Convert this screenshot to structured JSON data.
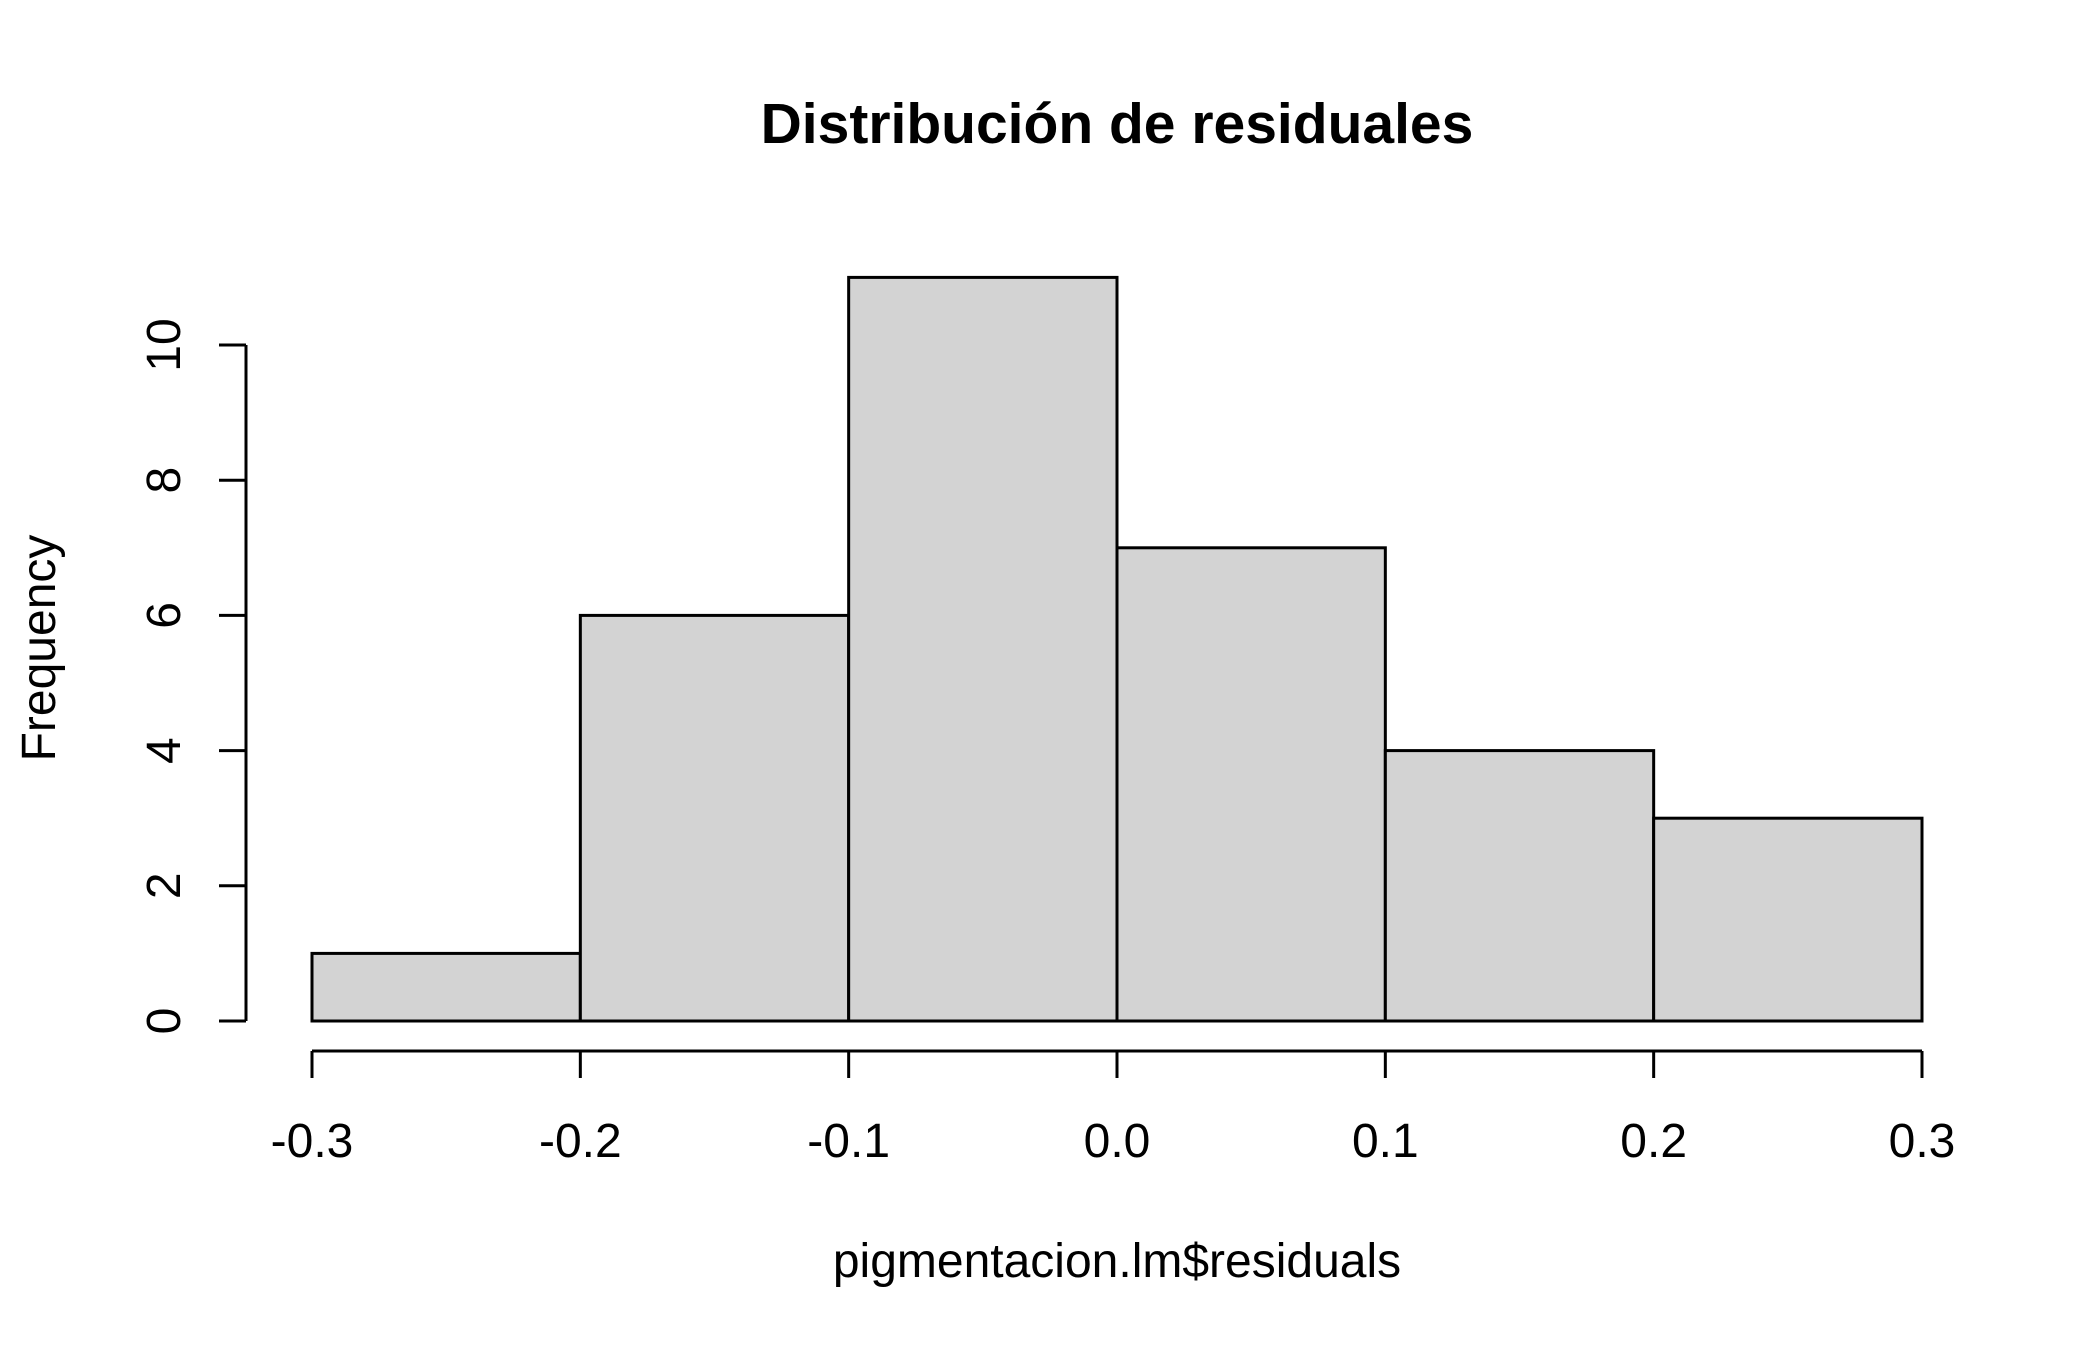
{
  "chart_data": {
    "type": "bar",
    "title": "Distribución de residuales",
    "xlabel": "pigmentacion.lm$residuals",
    "ylabel": "Frequency",
    "bins": [
      {
        "start": -0.3,
        "end": -0.2,
        "count": 1
      },
      {
        "start": -0.2,
        "end": -0.1,
        "count": 6
      },
      {
        "start": -0.1,
        "end": 0.0,
        "count": 11
      },
      {
        "start": 0.0,
        "end": 0.1,
        "count": 7
      },
      {
        "start": 0.1,
        "end": 0.2,
        "count": 4
      },
      {
        "start": 0.2,
        "end": 0.3,
        "count": 3
      }
    ],
    "xlim": [
      -0.3,
      0.3
    ],
    "ylim": [
      0,
      11
    ],
    "x_ticks": [
      -0.3,
      -0.2,
      -0.1,
      0.0,
      0.1,
      0.2,
      0.3
    ],
    "x_tick_labels": [
      "-0.3",
      "-0.2",
      "-0.1",
      "0.0",
      "0.1",
      "0.2",
      "0.3"
    ],
    "y_ticks": [
      0,
      2,
      4,
      6,
      8,
      10
    ],
    "y_tick_labels": [
      "0",
      "2",
      "4",
      "6",
      "8",
      "10"
    ],
    "bar_fill": "#d3d3d3",
    "bar_stroke": "#000000",
    "grid": false
  }
}
